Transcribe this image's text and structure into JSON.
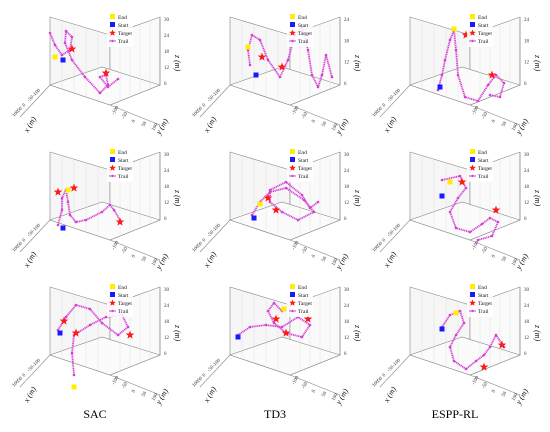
{
  "columns": [
    "SAC",
    "TD3",
    "ESPP-RL"
  ],
  "colors": {
    "trail": "#d63fd6",
    "start": "#1a1aff",
    "end": "#ffee00",
    "target": "#ff1a1a",
    "box": "#888888",
    "grid": "#dddddd"
  },
  "chart_data": [
    {
      "type": "line3d",
      "method": "SAC",
      "row": 1,
      "zlabel": "z (m)",
      "xlabel": "x (m)",
      "ylabel": "y (m)",
      "zticks": [
        "30",
        "24",
        "18",
        "12",
        "6"
      ],
      "xticks": [
        "-100",
        "-50",
        "0",
        "50",
        "100"
      ],
      "yticks": [
        "-100",
        "-50",
        "0",
        "50",
        "100"
      ],
      "legend": [
        "End",
        "Start",
        "Target",
        "Trail"
      ]
    },
    {
      "type": "line3d",
      "method": "TD3",
      "row": 1,
      "zlabel": "z (m)",
      "xlabel": "x (m)",
      "ylabel": "y (m)",
      "zticks": [
        "24",
        "18",
        "12",
        "6"
      ],
      "xticks": [
        "-100",
        "-50",
        "0",
        "50",
        "100"
      ],
      "yticks": [
        "-100",
        "-50",
        "0",
        "50",
        "100"
      ],
      "legend": [
        "End",
        "Start",
        "Target",
        "Trail"
      ]
    },
    {
      "type": "line3d",
      "method": "ESPP-RL",
      "row": 1,
      "zlabel": "z (m)",
      "xlabel": "x (m)",
      "ylabel": "y (m)",
      "zticks": [
        "24",
        "18",
        "12",
        "6"
      ],
      "xticks": [
        "-100",
        "-50",
        "0",
        "50",
        "100"
      ],
      "yticks": [
        "-100",
        "-50",
        "0",
        "50",
        "100"
      ],
      "legend": [
        "End",
        "Start",
        "Target",
        "Trail"
      ]
    },
    {
      "type": "line3d",
      "method": "SAC",
      "row": 2,
      "zlabel": "z (m)",
      "xlabel": "x (m)",
      "ylabel": "y (m)",
      "zticks": [
        "30",
        "24",
        "18",
        "12",
        "6"
      ],
      "xticks": [
        "-100",
        "-50",
        "0",
        "50",
        "100"
      ],
      "yticks": [
        "-100",
        "-50",
        "0",
        "50",
        "100"
      ],
      "legend": [
        "End",
        "Start",
        "Target",
        "Trail"
      ]
    },
    {
      "type": "line3d",
      "method": "TD3",
      "row": 2,
      "zlabel": "z (m)",
      "xlabel": "x (m)",
      "ylabel": "y (m)",
      "zticks": [
        "30",
        "24",
        "18",
        "12",
        "6"
      ],
      "xticks": [
        "-100",
        "-50",
        "0",
        "50",
        "100"
      ],
      "yticks": [
        "-100",
        "-50",
        "0",
        "50",
        "100"
      ],
      "legend": [
        "End",
        "Start",
        "Target",
        "Trail"
      ]
    },
    {
      "type": "line3d",
      "method": "ESPP-RL",
      "row": 2,
      "zlabel": "z (m)",
      "xlabel": "x (m)",
      "ylabel": "y (m)",
      "zticks": [
        "30",
        "24",
        "18",
        "12",
        "6"
      ],
      "xticks": [
        "-100",
        "-50",
        "0",
        "50",
        "100"
      ],
      "yticks": [
        "-100",
        "-50",
        "0",
        "50",
        "100"
      ],
      "legend": [
        "End",
        "Start",
        "Target",
        "Trail"
      ]
    },
    {
      "type": "line3d",
      "method": "SAC",
      "row": 3,
      "zlabel": "z (m)",
      "xlabel": "x (m)",
      "ylabel": "y (m)",
      "zticks": [
        "30",
        "24",
        "18",
        "12",
        "6"
      ],
      "xticks": [
        "-100",
        "-50",
        "0",
        "50",
        "100"
      ],
      "yticks": [
        "-100",
        "-50",
        "0",
        "50",
        "100"
      ],
      "legend": [
        "End",
        "Start",
        "Target",
        "Trail"
      ]
    },
    {
      "type": "line3d",
      "method": "TD3",
      "row": 3,
      "zlabel": "z (m)",
      "xlabel": "x (m)",
      "ylabel": "y (m)",
      "zticks": [
        "30",
        "24",
        "18",
        "12",
        "6"
      ],
      "xticks": [
        "-100",
        "-50",
        "0",
        "50",
        "100"
      ],
      "yticks": [
        "-100",
        "-50",
        "0",
        "50",
        "100"
      ],
      "legend": [
        "End",
        "Start",
        "Target",
        "Trail"
      ]
    },
    {
      "type": "line3d",
      "method": "ESPP-RL",
      "row": 3,
      "zlabel": "z (m)",
      "xlabel": "x (m)",
      "ylabel": "y (m)",
      "zticks": [
        "30",
        "24",
        "18",
        "12",
        "6"
      ],
      "xticks": [
        "-100",
        "-50",
        "0",
        "50",
        "100"
      ],
      "yticks": [
        "-100",
        "-50",
        "0",
        "50",
        "100"
      ],
      "legend": [
        "End",
        "Start",
        "Target",
        "Trail"
      ]
    }
  ]
}
